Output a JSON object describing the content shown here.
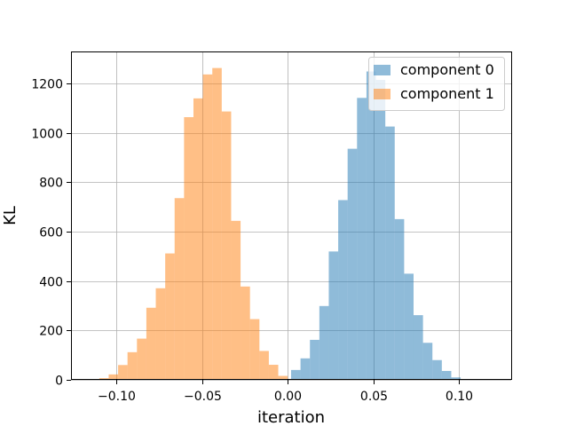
{
  "chart_data": {
    "type": "histogram",
    "title": "",
    "xlabel": "iteration",
    "ylabel": "KL",
    "xlim": [
      -0.1265,
      0.1305
    ],
    "ylim": [
      0,
      1330
    ],
    "grid": true,
    "legend_position": "top-right",
    "x_ticks": [
      {
        "value": -0.1,
        "label": "−0.10"
      },
      {
        "value": -0.05,
        "label": "−0.05"
      },
      {
        "value": 0.0,
        "label": "0.00"
      },
      {
        "value": 0.05,
        "label": "0.05"
      },
      {
        "value": 0.1,
        "label": "0.10"
      }
    ],
    "y_ticks": [
      {
        "value": 0,
        "label": "0"
      },
      {
        "value": 200,
        "label": "200"
      },
      {
        "value": 400,
        "label": "400"
      },
      {
        "value": 600,
        "label": "600"
      },
      {
        "value": 800,
        "label": "800"
      },
      {
        "value": 1000,
        "label": "1000"
      },
      {
        "value": 1200,
        "label": "1200"
      }
    ],
    "series": [
      {
        "name": "component 0",
        "color": "#1f77b4",
        "opacity": 0.5,
        "bin_start": -0.0035,
        "bin_width": 0.0055,
        "counts": [
          3,
          40,
          87,
          162,
          299,
          520,
          728,
          936,
          1142,
          1249,
          1215,
          1026,
          651,
          430,
          262,
          150,
          80,
          36,
          10
        ]
      },
      {
        "name": "component 1",
        "color": "#ff7f0e",
        "opacity": 0.5,
        "bin_start": -0.11,
        "bin_width": 0.0055,
        "counts": [
          7,
          22,
          60,
          112,
          167,
          292,
          371,
          512,
          736,
          1064,
          1140,
          1237,
          1263,
          1087,
          644,
          378,
          246,
          117,
          61,
          16,
          3
        ]
      }
    ]
  }
}
